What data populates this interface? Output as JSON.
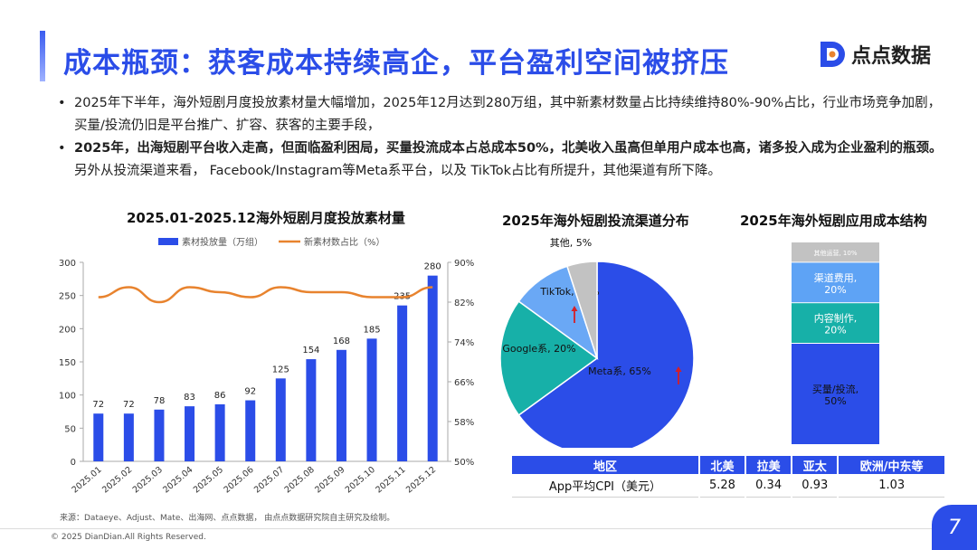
{
  "header": {
    "title": "成本瓶颈：获客成本持续高企，平台盈利空间被挤压",
    "logo_text": "点点数据"
  },
  "bullets": [
    {
      "bold": "",
      "text": "2025年下半年，海外短剧月度投放素材量大幅增加，2025年12月达到280万组，其中新素材数量占比持续维持80%-90%占比，行业市场竞争加剧，买量/投流仍旧是平台推广、扩容、获客的主要手段，"
    },
    {
      "bold": "2025年，出海短剧平台收入走高，但面临盈利困局，买量投流成本占总成本50%，北美收入虽高但单用户成本也高，诸多投入成为企业盈利的瓶颈。",
      "text": "另外从投流渠道来看， Facebook/Instagram等Meta系平台，以及 TikTok占比有所提升，其他渠道有所下降。"
    }
  ],
  "chart_data": [
    {
      "type": "bar",
      "title": "2025.01-2025.12海外短剧月度投放素材量",
      "categories": [
        "2025.01",
        "2025.02",
        "2025.03",
        "2025.04",
        "2025.05",
        "2025.06",
        "2025.07",
        "2025.08",
        "2025.09",
        "2025.10",
        "2025.11",
        "2025.12"
      ],
      "series": [
        {
          "name": "素材投放量（万组）",
          "type": "bar",
          "axis": "left",
          "values": [
            72,
            72,
            78,
            83,
            86,
            92,
            125,
            154,
            168,
            185,
            235,
            280
          ]
        },
        {
          "name": "新素材数占比（%）",
          "type": "line",
          "axis": "right",
          "values": [
            83,
            85,
            82,
            85,
            84,
            83,
            85,
            84,
            84,
            83,
            83,
            85
          ]
        }
      ],
      "ylim": [
        0,
        300
      ],
      "yticks": [
        0,
        50,
        100,
        150,
        200,
        250,
        300
      ],
      "y2lim": [
        50,
        90
      ],
      "y2ticks": [
        "50%",
        "58%",
        "66%",
        "74%",
        "82%",
        "90%"
      ],
      "legend": "top",
      "colors": {
        "bar": "#2b4de8",
        "line": "#e8832e"
      }
    },
    {
      "type": "pie",
      "title": "2025年海外短剧投流渠道分布",
      "slices": [
        {
          "label": "Meta系, 65%",
          "value": 65,
          "color": "#2b4de8",
          "trend": "up"
        },
        {
          "label": "Google系, 20%",
          "value": 20,
          "color": "#17b0a8",
          "trend": ""
        },
        {
          "label": "TikTok, 10%",
          "value": 10,
          "color": "#6aa8f5",
          "trend": "up"
        },
        {
          "label": "其他, 5%",
          "value": 5,
          "color": "#c2c2c2",
          "trend": ""
        }
      ]
    },
    {
      "type": "bar",
      "title": "2025年海外短剧应用成本结构",
      "stacked": true,
      "segments": [
        {
          "label": "买量/投流, 50%",
          "value": 50,
          "color": "#2b4de8"
        },
        {
          "label": "内容制作, 20%",
          "value": 20,
          "color": "#17b0a8"
        },
        {
          "label": "渠道费用, 20%",
          "value": 20,
          "color": "#5ea3f5"
        },
        {
          "label": "其他运营, 10%",
          "value": 10,
          "color": "#c2c2c2"
        }
      ]
    }
  ],
  "cpi_table": {
    "headers": [
      "地区",
      "北美",
      "拉美",
      "亚太",
      "欧洲/中东等"
    ],
    "rows": [
      [
        "App平均CPI（美元）",
        "5.28",
        "0.34",
        "0.93",
        "1.03"
      ]
    ]
  },
  "footer": {
    "source": "来源：Dataeye、Adjust、Mate、出海网、点点数据， 由点点数据研究院自主研究及绘制。",
    "copyright": "© 2025 DianDian.All Rights Reserved.",
    "page_number": "7"
  }
}
